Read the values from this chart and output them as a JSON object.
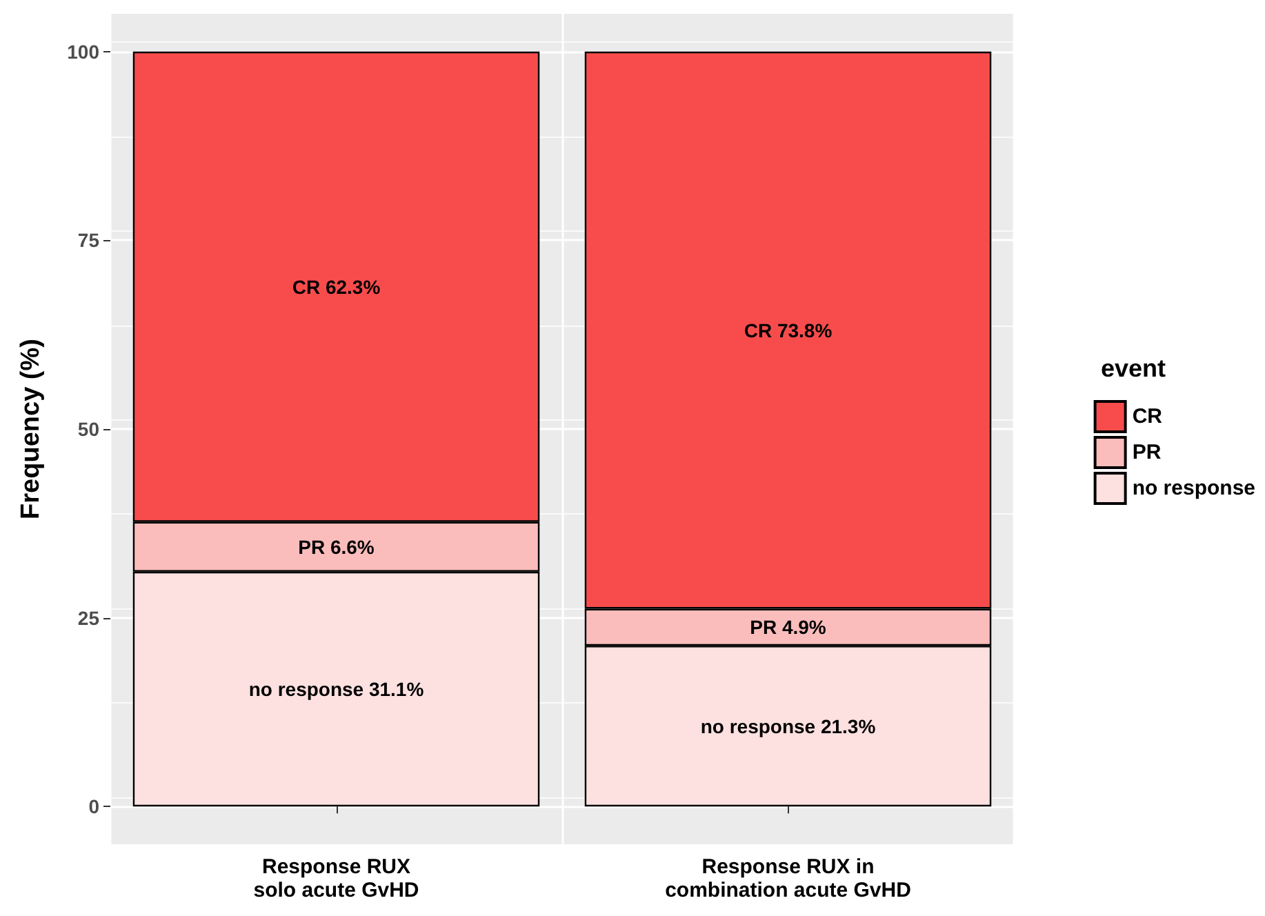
{
  "chart_data": {
    "type": "bar",
    "stacked": true,
    "ylabel": "Frequency (%)",
    "legend_title": "event",
    "categories": [
      "Response RUX\nsolo acute GvHD",
      "Response RUX in\ncombination acute GvHD"
    ],
    "series": [
      {
        "name": "no response",
        "color": "#fde0e0",
        "values": [
          31.1,
          21.3
        ],
        "value_labels": [
          "no response 31.1%",
          "no response 21.3%"
        ]
      },
      {
        "name": "PR",
        "color": "#fbbcbc",
        "values": [
          6.6,
          4.9
        ],
        "value_labels": [
          "PR 6.6%",
          "PR 4.9%"
        ]
      },
      {
        "name": "CR",
        "color": "#f84c4c",
        "values": [
          62.3,
          73.8
        ],
        "value_labels": [
          "CR 62.3%",
          "CR 73.8%"
        ]
      }
    ],
    "ylim": [
      -5,
      105
    ],
    "yticks": [
      0,
      25,
      50,
      75,
      100
    ],
    "grid": true,
    "legend": "right"
  }
}
